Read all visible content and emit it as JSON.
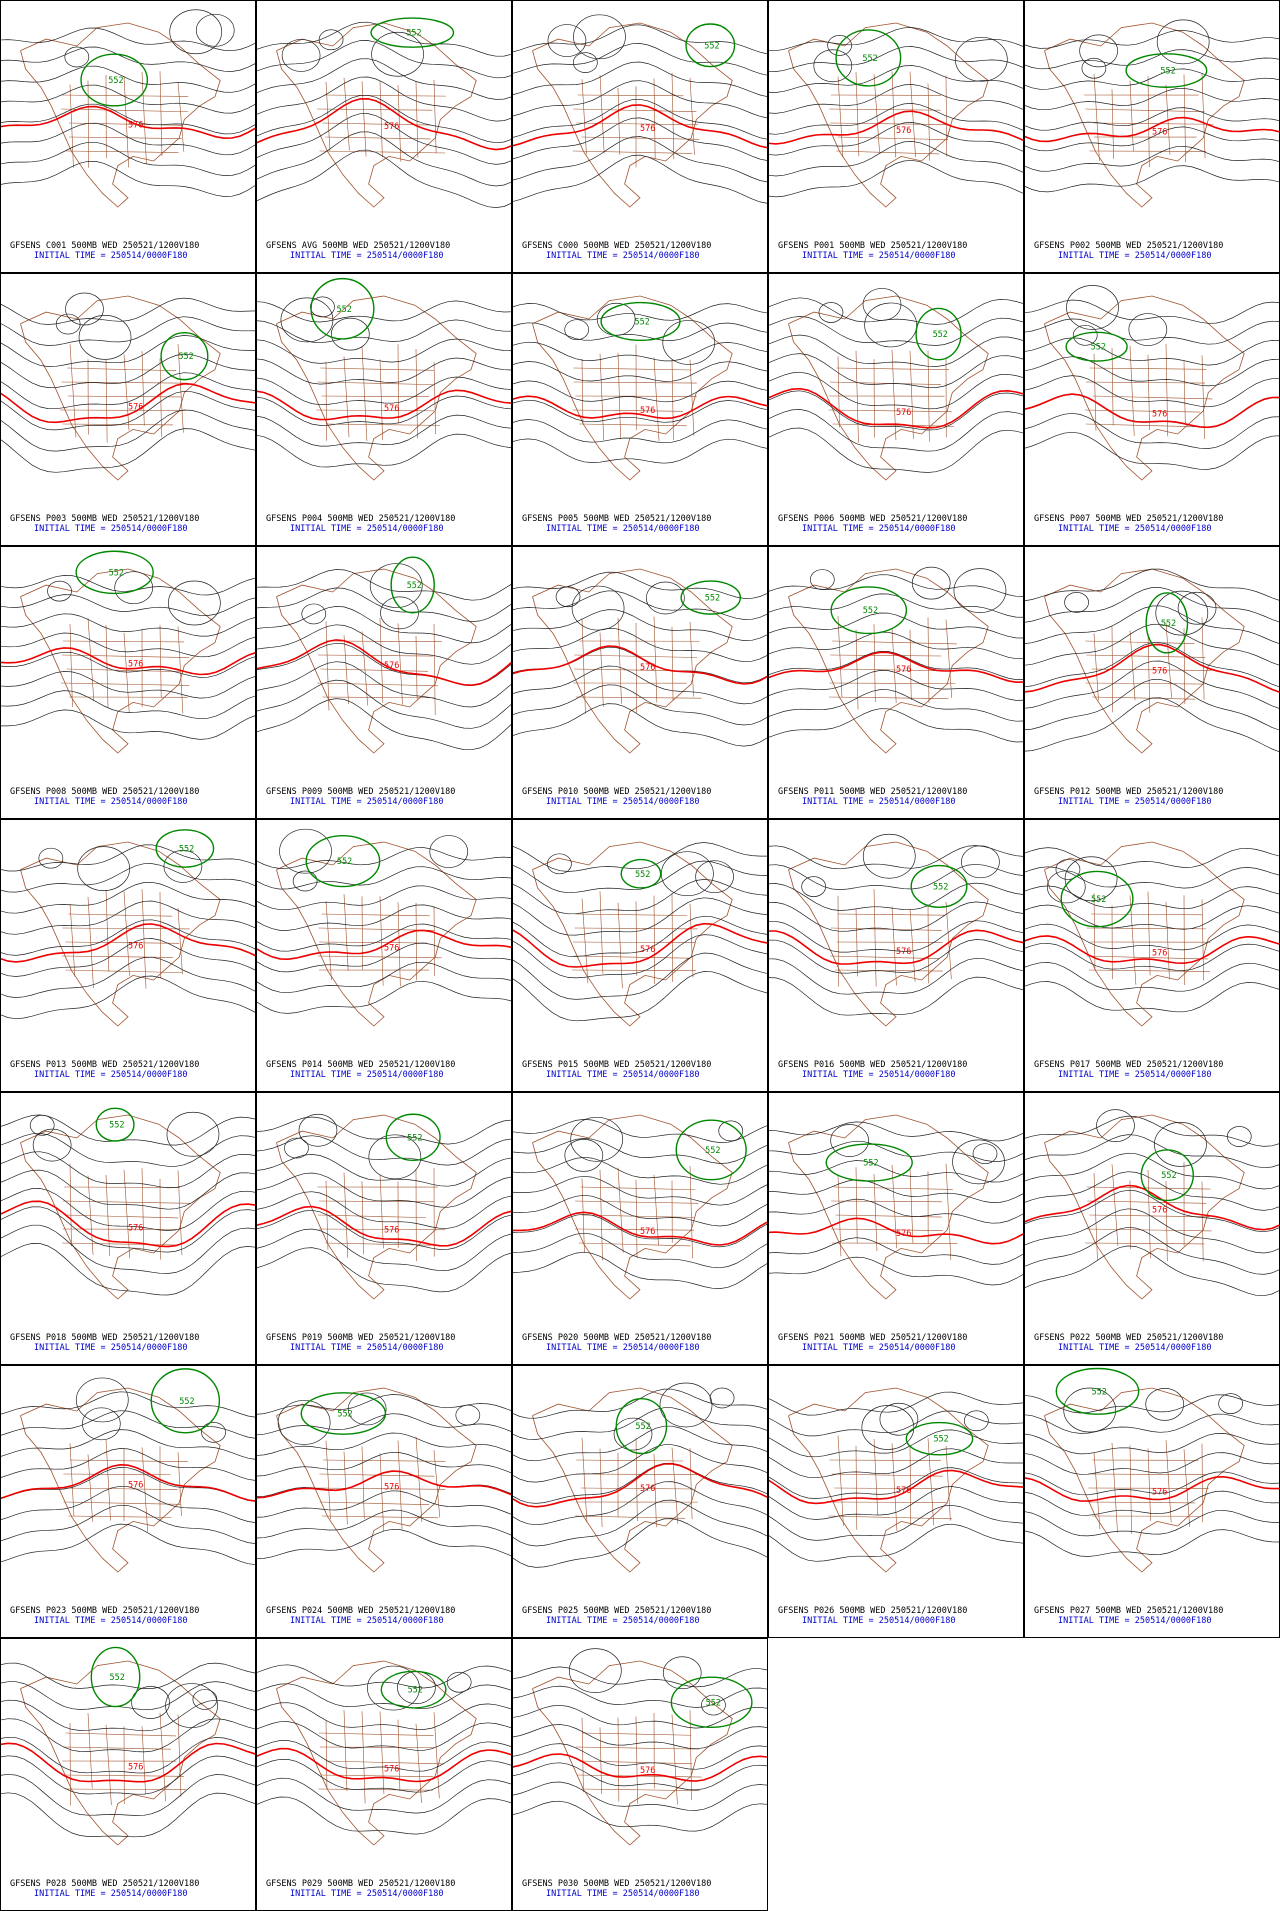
{
  "panels": [
    {
      "title": "GFSENS C001 500MB WED 250521/1200V180",
      "subtitle": "INITIAL TIME = 250514/0000F180",
      "contour_labels": [
        "552",
        "576"
      ]
    },
    {
      "title": "GFSENS AVG 500MB WED 250521/1200V180",
      "subtitle": "INITIAL TIME = 250514/0000F180",
      "contour_labels": [
        "552",
        "576"
      ]
    },
    {
      "title": "GFSENS C000 500MB WED 250521/1200V180",
      "subtitle": "INITIAL TIME = 250514/0000F180",
      "contour_labels": [
        "552",
        "576"
      ]
    },
    {
      "title": "GFSENS P001 500MB WED 250521/1200V180",
      "subtitle": "INITIAL TIME = 250514/0000F180",
      "contour_labels": [
        "552",
        "576"
      ]
    },
    {
      "title": "GFSENS P002 500MB WED 250521/1200V180",
      "subtitle": "INITIAL TIME = 250514/0000F180",
      "contour_labels": [
        "552",
        "576"
      ]
    },
    {
      "title": "GFSENS P003 500MB WED 250521/1200V180",
      "subtitle": "INITIAL TIME = 250514/0000F180",
      "contour_labels": [
        "552",
        "576"
      ]
    },
    {
      "title": "GFSENS P004 500MB WED 250521/1200V180",
      "subtitle": "INITIAL TIME = 250514/0000F180",
      "contour_labels": [
        "552",
        "576"
      ]
    },
    {
      "title": "GFSENS P005 500MB WED 250521/1200V180",
      "subtitle": "INITIAL TIME = 250514/0000F180",
      "contour_labels": [
        "552",
        "576"
      ]
    },
    {
      "title": "GFSENS P006 500MB WED 250521/1200V180",
      "subtitle": "INITIAL TIME = 250514/0000F180",
      "contour_labels": [
        "552",
        "576"
      ]
    },
    {
      "title": "GFSENS P007 500MB WED 250521/1200V180",
      "subtitle": "INITIAL TIME = 250514/0000F180",
      "contour_labels": [
        "552",
        "576"
      ]
    },
    {
      "title": "GFSENS P008 500MB WED 250521/1200V180",
      "subtitle": "INITIAL TIME = 250514/0000F180",
      "contour_labels": [
        "552",
        "576"
      ]
    },
    {
      "title": "GFSENS P009 500MB WED 250521/1200V180",
      "subtitle": "INITIAL TIME = 250514/0000F180",
      "contour_labels": [
        "552",
        "576"
      ]
    },
    {
      "title": "GFSENS P010 500MB WED 250521/1200V180",
      "subtitle": "INITIAL TIME = 250514/0000F180",
      "contour_labels": [
        "552",
        "576"
      ]
    },
    {
      "title": "GFSENS P011 500MB WED 250521/1200V180",
      "subtitle": "INITIAL TIME = 250514/0000F180",
      "contour_labels": [
        "552",
        "576"
      ]
    },
    {
      "title": "GFSENS P012 500MB WED 250521/1200V180",
      "subtitle": "INITIAL TIME = 250514/0000F180",
      "contour_labels": [
        "552",
        "576"
      ]
    },
    {
      "title": "GFSENS P013 500MB WED 250521/1200V180",
      "subtitle": "INITIAL TIME = 250514/0000F180",
      "contour_labels": [
        "552",
        "576"
      ]
    },
    {
      "title": "GFSENS P014 500MB WED 250521/1200V180",
      "subtitle": "INITIAL TIME = 250514/0000F180",
      "contour_labels": [
        "552",
        "576"
      ]
    },
    {
      "title": "GFSENS P015 500MB WED 250521/1200V180",
      "subtitle": "INITIAL TIME = 250514/0000F180",
      "contour_labels": [
        "552",
        "576"
      ]
    },
    {
      "title": "GFSENS P016 500MB WED 250521/1200V180",
      "subtitle": "INITIAL TIME = 250514/0000F180",
      "contour_labels": [
        "552",
        "576"
      ]
    },
    {
      "title": "GFSENS P017 500MB WED 250521/1200V180",
      "subtitle": "INITIAL TIME = 250514/0000F180",
      "contour_labels": [
        "552",
        "576"
      ]
    },
    {
      "title": "GFSENS P018 500MB WED 250521/1200V180",
      "subtitle": "INITIAL TIME = 250514/0000F180",
      "contour_labels": [
        "552",
        "576"
      ]
    },
    {
      "title": "GFSENS P019 500MB WED 250521/1200V180",
      "subtitle": "INITIAL TIME = 250514/0000F180",
      "contour_labels": [
        "552",
        "576"
      ]
    },
    {
      "title": "GFSENS P020 500MB WED 250521/1200V180",
      "subtitle": "INITIAL TIME = 250514/0000F180",
      "contour_labels": [
        "552",
        "576"
      ]
    },
    {
      "title": "GFSENS P021 500MB WED 250521/1200V180",
      "subtitle": "INITIAL TIME = 250514/0000F180",
      "contour_labels": [
        "552",
        "576"
      ]
    },
    {
      "title": "GFSENS P022 500MB WED 250521/1200V180",
      "subtitle": "INITIAL TIME = 250514/0000F180",
      "contour_labels": [
        "552",
        "576"
      ]
    },
    {
      "title": "GFSENS P023 500MB WED 250521/1200V180",
      "subtitle": "INITIAL TIME = 250514/0000F180",
      "contour_labels": [
        "552",
        "576"
      ]
    },
    {
      "title": "GFSENS P024 500MB WED 250521/1200V180",
      "subtitle": "INITIAL TIME = 250514/0000F180",
      "contour_labels": [
        "552",
        "576"
      ]
    },
    {
      "title": "GFSENS P025 500MB WED 250521/1200V180",
      "subtitle": "INITIAL TIME = 250514/0000F180",
      "contour_labels": [
        "552",
        "576"
      ]
    },
    {
      "title": "GFSENS P026 500MB WED 250521/1200V180",
      "subtitle": "INITIAL TIME = 250514/0000F180",
      "contour_labels": [
        "552",
        "576"
      ]
    },
    {
      "title": "GFSENS P027 500MB WED 250521/1200V180",
      "subtitle": "INITIAL TIME = 250514/0000F180",
      "contour_labels": [
        "552",
        "576"
      ]
    },
    {
      "title": "GFSENS P028 500MB WED 250521/1200V180",
      "subtitle": "INITIAL TIME = 250514/0000F180",
      "contour_labels": [
        "552",
        "576"
      ]
    },
    {
      "title": "GFSENS P029 500MB WED 250521/1200V180",
      "subtitle": "INITIAL TIME = 250514/0000F180",
      "contour_labels": [
        "552",
        "576"
      ]
    },
    {
      "title": "GFSENS P030 500MB WED 250521/1200V180",
      "subtitle": "INITIAL TIME = 250514/0000F180",
      "contour_labels": [
        "552",
        "576"
      ]
    }
  ]
}
